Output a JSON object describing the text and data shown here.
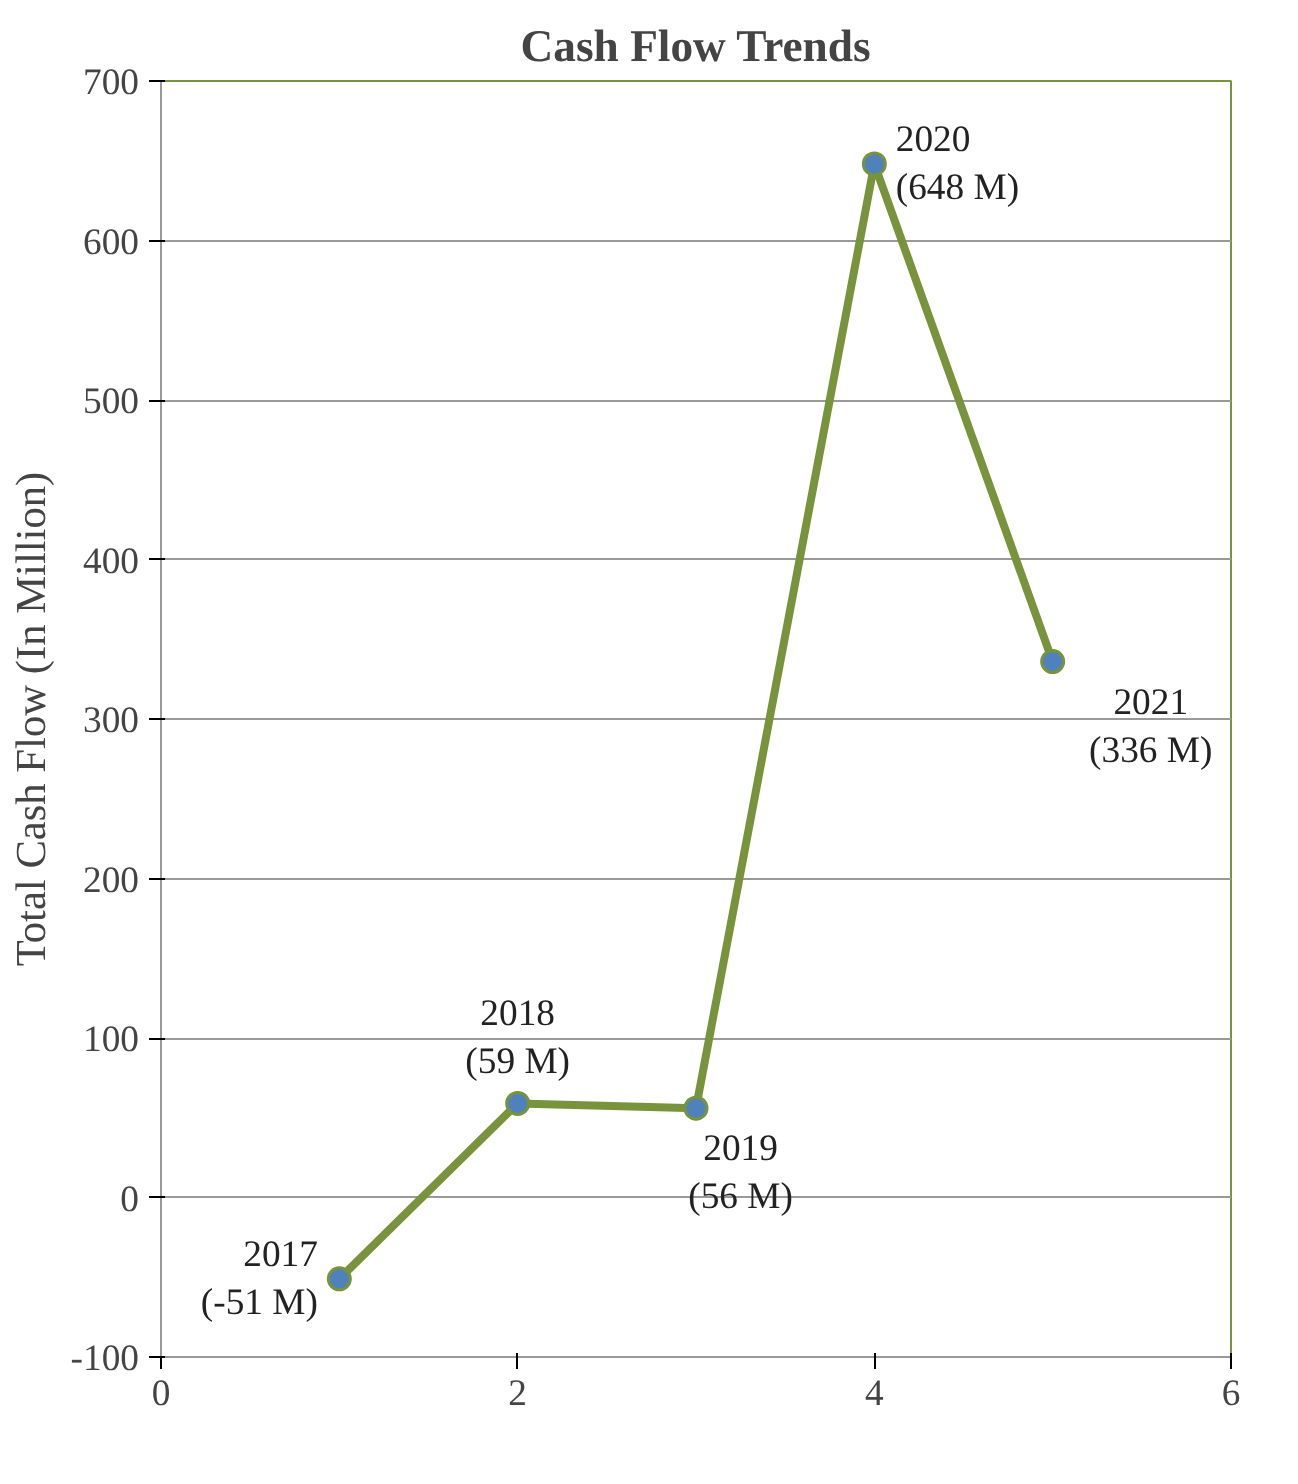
{
  "chart_data": {
    "type": "line",
    "title": "Cash Flow Trends",
    "ylabel": "Total Cash Flow (In Million)",
    "x": [
      1,
      2,
      3,
      4,
      5
    ],
    "series": [
      {
        "color": "#77933c",
        "values": [
          -51,
          59,
          56,
          648,
          336
        ],
        "value_labels": [
          "2017\n(-51 M)",
          "2018\n(59 M)",
          "2019\n(56 M)",
          "2020\n(648 M)",
          "2021\n(336 M)"
        ]
      }
    ],
    "xlim": [
      0,
      6
    ],
    "xticks": [
      0,
      2,
      4,
      6
    ],
    "ylim": [
      -100,
      700
    ],
    "yticks": [
      -100,
      0,
      100,
      200,
      300,
      400,
      500,
      600,
      700
    ],
    "grid": "y",
    "marker": "circle"
  }
}
